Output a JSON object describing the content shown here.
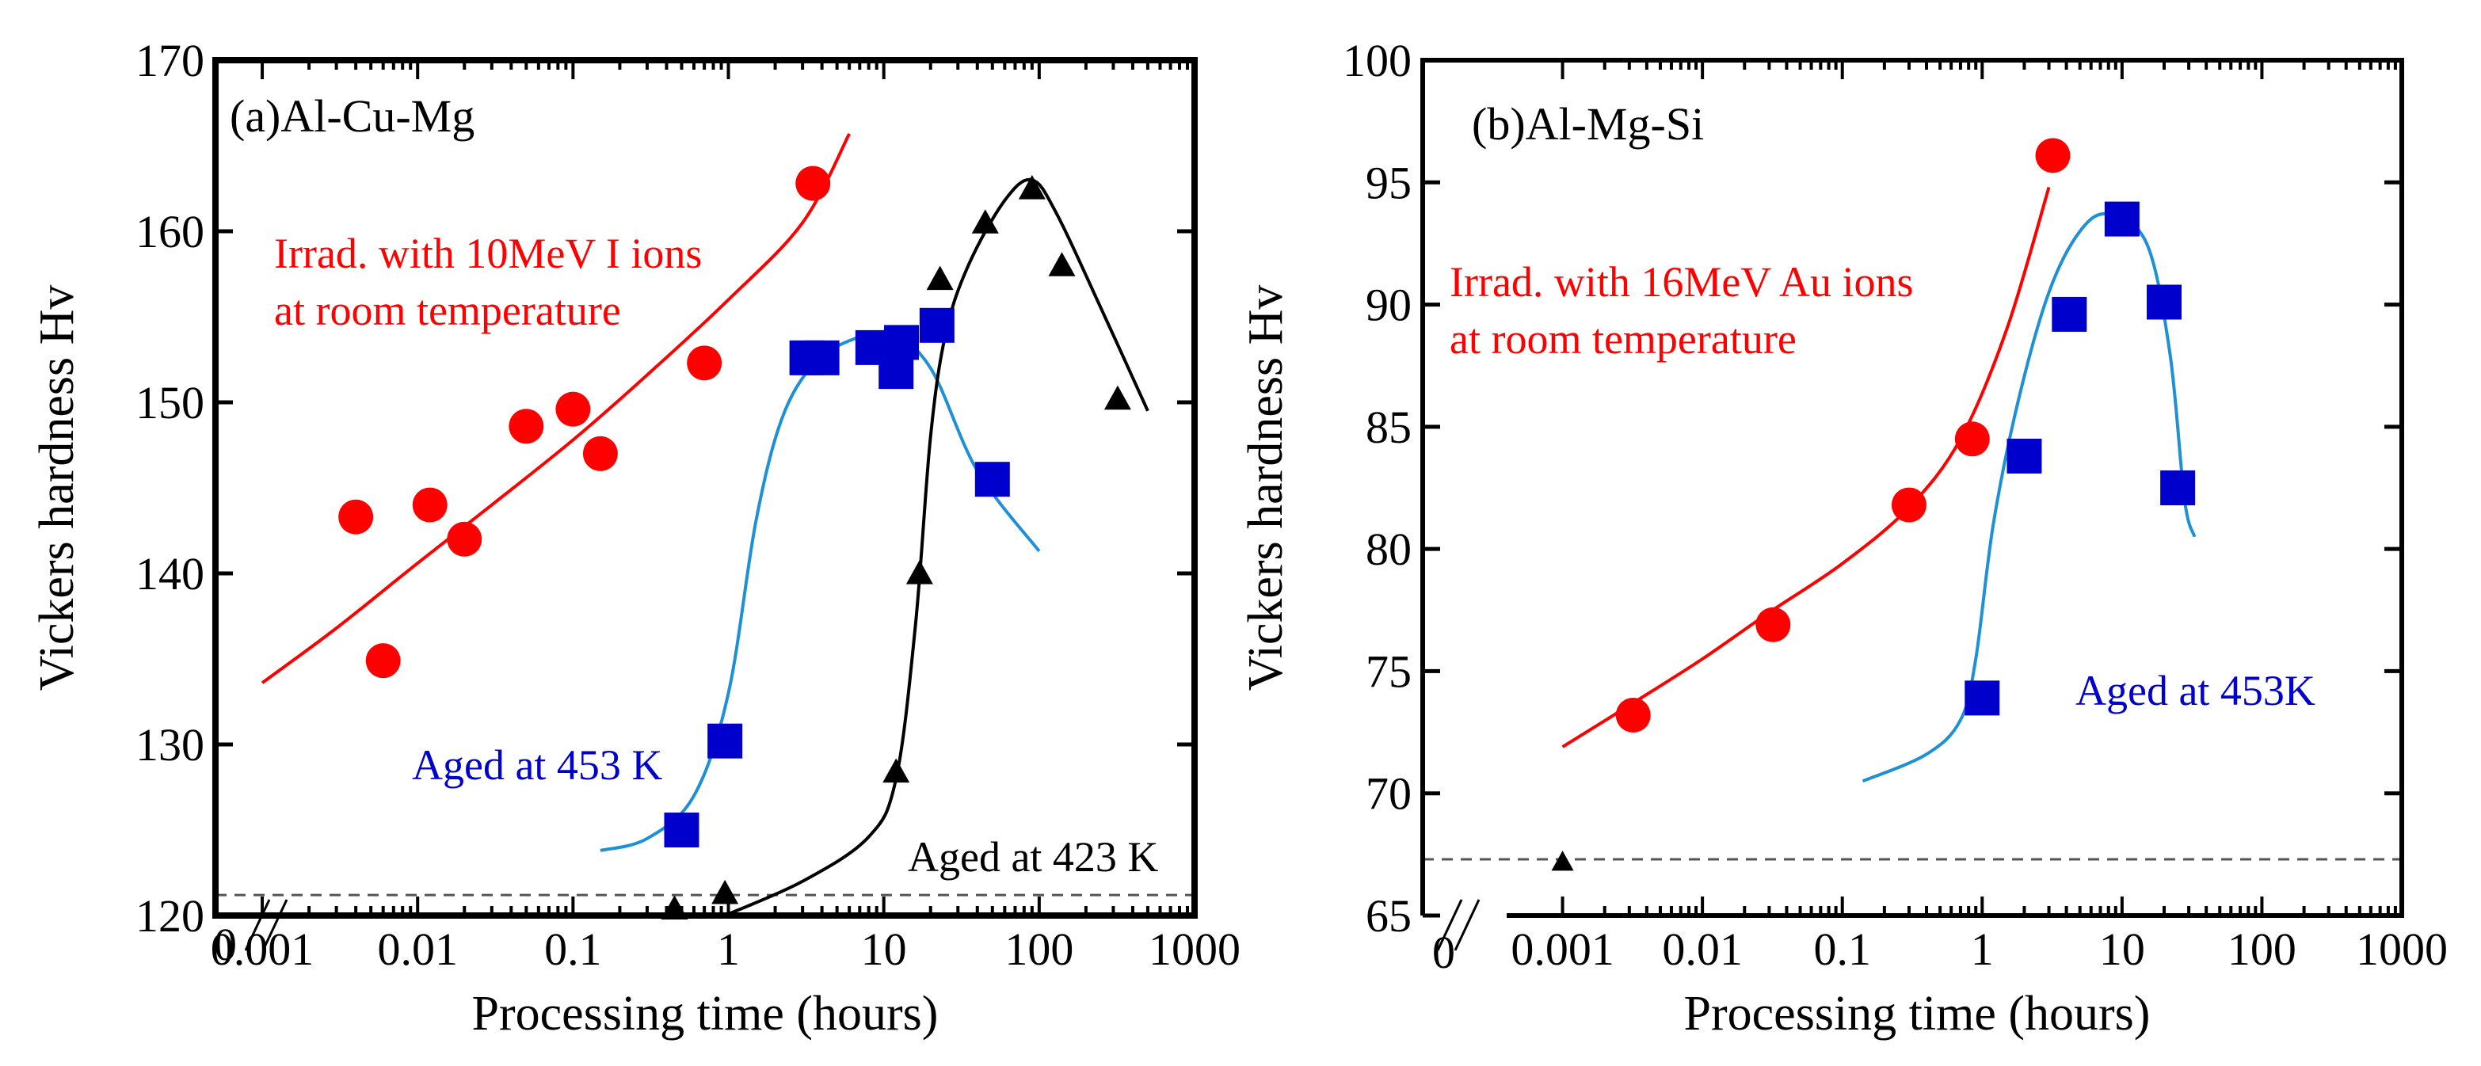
{
  "colors": {
    "irradiated": "#ff0000",
    "aged_453": "#0000cc",
    "aged_453_curve": "#1e90d6",
    "aged_423": "#000000",
    "axes": "#000000",
    "baseline": "#555555"
  },
  "chart_data": [
    {
      "type": "scatter",
      "title": "(a)Al-Cu-Mg",
      "xlabel": "Processing time (hours)",
      "ylabel": "Vickers hardness Hv",
      "xscale": "log",
      "xlim": [
        0.0005,
        1000
      ],
      "ylim": [
        120,
        170
      ],
      "xticks": [
        "0.001",
        "0.01",
        "0.1",
        "1",
        "10",
        "100",
        "1000"
      ],
      "yticks": [
        "120",
        "130",
        "140",
        "150",
        "160",
        "170"
      ],
      "axis_break": true,
      "zero_label": "0",
      "baseline_hv": 121.2,
      "series": [
        {
          "name": "Irrad. with 10MeV I ions at room temperature",
          "label_lines": [
            "Irrad. with 10MeV I ions",
            "at room temperature"
          ],
          "marker": "circle",
          "color": "#ff0000",
          "points": [
            [
              0.004,
              143.3
            ],
            [
              0.006,
              134.9
            ],
            [
              0.012,
              144.0
            ],
            [
              0.02,
              142.0
            ],
            [
              0.05,
              148.6
            ],
            [
              0.1,
              149.6
            ],
            [
              0.15,
              147.0
            ],
            [
              0.7,
              152.3
            ],
            [
              3.5,
              162.8
            ]
          ],
          "curve": [
            [
              0.001,
              133.6
            ],
            [
              0.003,
              136.8
            ],
            [
              0.01,
              140.6
            ],
            [
              0.03,
              144.0
            ],
            [
              0.1,
              147.8
            ],
            [
              0.3,
              151.6
            ],
            [
              1,
              156.0
            ],
            [
              3,
              160.5
            ],
            [
              6,
              165.7
            ]
          ]
        },
        {
          "name": "Aged at 453 K",
          "label_lines": [
            "Aged at 453 K"
          ],
          "marker": "square",
          "color": "#0000cc",
          "points": [
            [
              0.5,
              125.0
            ],
            [
              0.95,
              130.2
            ],
            [
              3.2,
              152.6
            ],
            [
              4.0,
              152.6
            ],
            [
              8.5,
              153.2
            ],
            [
              12,
              151.8
            ],
            [
              13,
              153.5
            ],
            [
              22,
              154.5
            ],
            [
              50,
              145.5
            ]
          ],
          "curve": [
            [
              0.15,
              123.8
            ],
            [
              0.3,
              124.5
            ],
            [
              0.6,
              127.0
            ],
            [
              1.0,
              133.0
            ],
            [
              1.5,
              143.0
            ],
            [
              2.2,
              149.0
            ],
            [
              3.5,
              152.2
            ],
            [
              6,
              153.6
            ],
            [
              11,
              154.0
            ],
            [
              20,
              152.0
            ],
            [
              40,
              146.0
            ],
            [
              100,
              141.3
            ]
          ]
        },
        {
          "name": "Aged at 423 K",
          "label_lines": [
            "Aged at 423 K"
          ],
          "marker": "triangle",
          "color": "#000000",
          "points": [
            [
              0.45,
              120.4
            ],
            [
              0.95,
              121.3
            ],
            [
              12,
              128.4
            ],
            [
              17,
              140.0
            ],
            [
              23,
              157.2
            ],
            [
              45,
              160.5
            ],
            [
              90,
              162.5
            ],
            [
              140,
              158.0
            ],
            [
              320,
              150.2
            ]
          ],
          "curve": [
            [
              0.95,
              120.0
            ],
            [
              3,
              122.0
            ],
            [
              8,
              124.6
            ],
            [
              12,
              128.0
            ],
            [
              16,
              137.0
            ],
            [
              20,
              148.0
            ],
            [
              25,
              154.0
            ],
            [
              35,
              158.0
            ],
            [
              60,
              161.8
            ],
            [
              90,
              163.0
            ],
            [
              130,
              161.0
            ],
            [
              250,
              155.5
            ],
            [
              500,
              149.5
            ]
          ]
        }
      ]
    },
    {
      "type": "scatter",
      "title": "(b)Al-Mg-Si",
      "xlabel": "Processing time (hours)",
      "ylabel": "Vickers hardness Hv",
      "xscale": "log",
      "xlim": [
        0.0001,
        1000
      ],
      "ylim": [
        65,
        100
      ],
      "xticks": [
        "0.001",
        "0.01",
        "0.1",
        "1",
        "10",
        "100",
        "1000"
      ],
      "yticks": [
        "65",
        "70",
        "75",
        "80",
        "85",
        "90",
        "95",
        "100"
      ],
      "axis_break": true,
      "zero_label": "0",
      "baseline_hv": 67.3,
      "series": [
        {
          "name": "Irrad. with 16MeV Au ions at room temperature",
          "label_lines": [
            "Irrad. with 16MeV Au ions",
            "at room temperature"
          ],
          "marker": "circle",
          "color": "#ff0000",
          "points": [
            [
              0.0032,
              73.2
            ],
            [
              0.032,
              76.9
            ],
            [
              0.3,
              81.8
            ],
            [
              0.85,
              84.5
            ],
            [
              3.2,
              96.1
            ]
          ],
          "curve": [
            [
              0.001,
              71.9
            ],
            [
              0.003,
              73.6
            ],
            [
              0.01,
              75.5
            ],
            [
              0.03,
              77.4
            ],
            [
              0.1,
              79.4
            ],
            [
              0.3,
              81.7
            ],
            [
              0.7,
              84.5
            ],
            [
              1.5,
              89.0
            ],
            [
              3,
              94.8
            ]
          ]
        },
        {
          "name": "Aged at 453K",
          "label_lines": [
            "Aged at 453K"
          ],
          "marker": "square",
          "color": "#0000cc",
          "points": [
            [
              1.0,
              73.9
            ],
            [
              2.0,
              83.8
            ],
            [
              4.2,
              89.6
            ],
            [
              10,
              93.5
            ],
            [
              20,
              90.1
            ],
            [
              25,
              82.5
            ]
          ],
          "curve": [
            [
              0.14,
              70.5
            ],
            [
              0.4,
              71.6
            ],
            [
              0.7,
              73.0
            ],
            [
              0.9,
              75.5
            ],
            [
              1.2,
              81.0
            ],
            [
              1.8,
              86.0
            ],
            [
              3,
              90.5
            ],
            [
              5,
              93.0
            ],
            [
              8,
              93.7
            ],
            [
              15,
              92.5
            ],
            [
              22,
              88.0
            ],
            [
              28,
              82.0
            ],
            [
              33,
              80.5
            ]
          ]
        },
        {
          "name": "",
          "label_lines": [],
          "marker": "triangle",
          "color": "#000000",
          "points": [
            [
              0.001,
              67.2
            ]
          ],
          "curve": []
        }
      ]
    }
  ]
}
